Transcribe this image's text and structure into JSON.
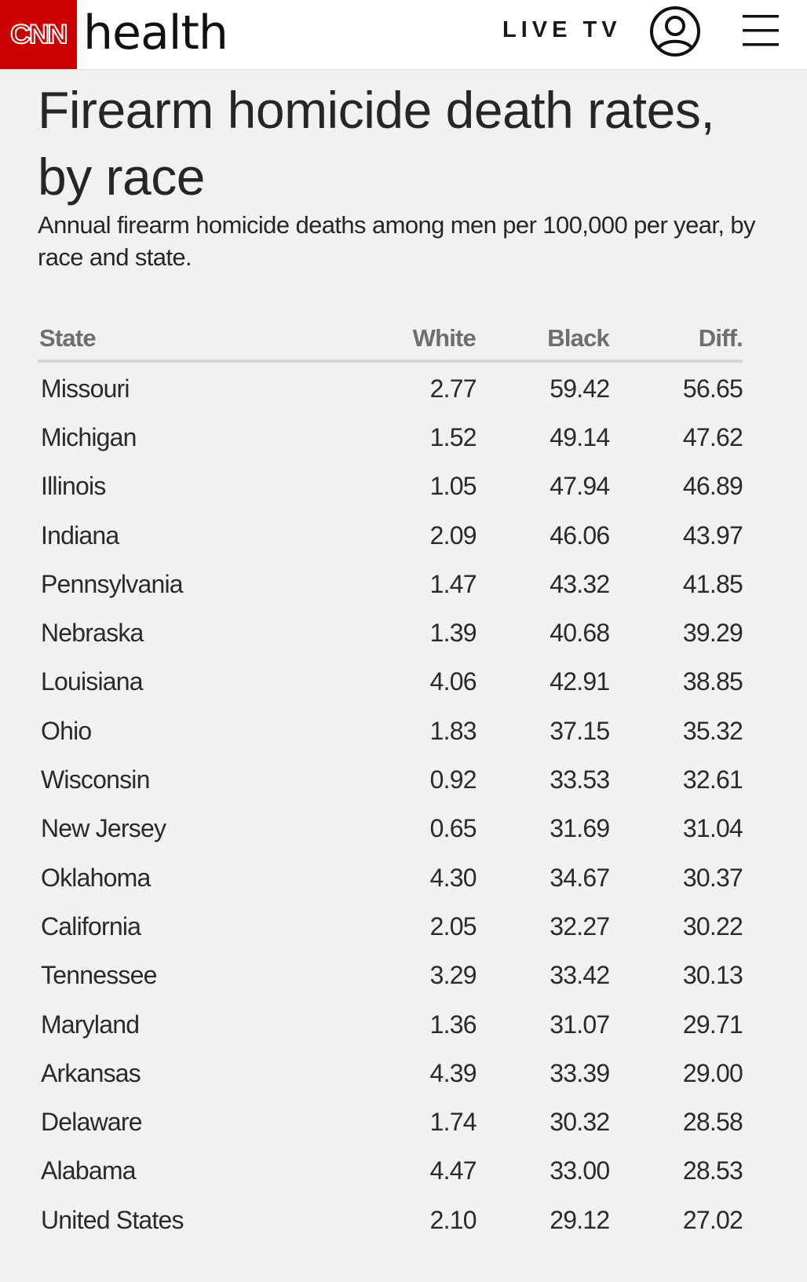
{
  "header": {
    "logo": "CNN",
    "section": "health",
    "live_tv_label": "LIVE TV",
    "icons": [
      "user-account-icon",
      "hamburger-menu-icon"
    ]
  },
  "article": {
    "title": "Firearm homicide death rates, by race",
    "subtitle": "Annual firearm homicide deaths among men per 100,000 per year, by race and state."
  },
  "table": {
    "headers": [
      "State",
      "White",
      "Black",
      "Diff."
    ],
    "rows": [
      {
        "state": "Missouri",
        "white": "2.77",
        "black": "59.42",
        "diff": "56.65"
      },
      {
        "state": "Michigan",
        "white": "1.52",
        "black": "49.14",
        "diff": "47.62"
      },
      {
        "state": "Illinois",
        "white": "1.05",
        "black": "47.94",
        "diff": "46.89"
      },
      {
        "state": "Indiana",
        "white": "2.09",
        "black": "46.06",
        "diff": "43.97"
      },
      {
        "state": "Pennsylvania",
        "white": "1.47",
        "black": "43.32",
        "diff": "41.85"
      },
      {
        "state": "Nebraska",
        "white": "1.39",
        "black": "40.68",
        "diff": "39.29"
      },
      {
        "state": "Louisiana",
        "white": "4.06",
        "black": "42.91",
        "diff": "38.85"
      },
      {
        "state": "Ohio",
        "white": "1.83",
        "black": "37.15",
        "diff": "35.32"
      },
      {
        "state": "Wisconsin",
        "white": "0.92",
        "black": "33.53",
        "diff": "32.61"
      },
      {
        "state": "New Jersey",
        "white": "0.65",
        "black": "31.69",
        "diff": "31.04"
      },
      {
        "state": "Oklahoma",
        "white": "4.30",
        "black": "34.67",
        "diff": "30.37"
      },
      {
        "state": "California",
        "white": "2.05",
        "black": "32.27",
        "diff": "30.22"
      },
      {
        "state": "Tennessee",
        "white": "3.29",
        "black": "33.42",
        "diff": "30.13"
      },
      {
        "state": "Maryland",
        "white": "1.36",
        "black": "31.07",
        "diff": "29.71"
      },
      {
        "state": "Arkansas",
        "white": "4.39",
        "black": "33.39",
        "diff": "29.00"
      },
      {
        "state": "Delaware",
        "white": "1.74",
        "black": "30.32",
        "diff": "28.58"
      },
      {
        "state": "Alabama",
        "white": "4.47",
        "black": "33.00",
        "diff": "28.53"
      },
      {
        "state": "United States",
        "white": "2.10",
        "black": "29.12",
        "diff": "27.02"
      }
    ]
  },
  "colors": {
    "brand_red": "#cc0000",
    "background": "#f1f1f1",
    "header_bg": "#ffffff",
    "header_text": "#6e6e6e",
    "body_text": "#262626"
  }
}
